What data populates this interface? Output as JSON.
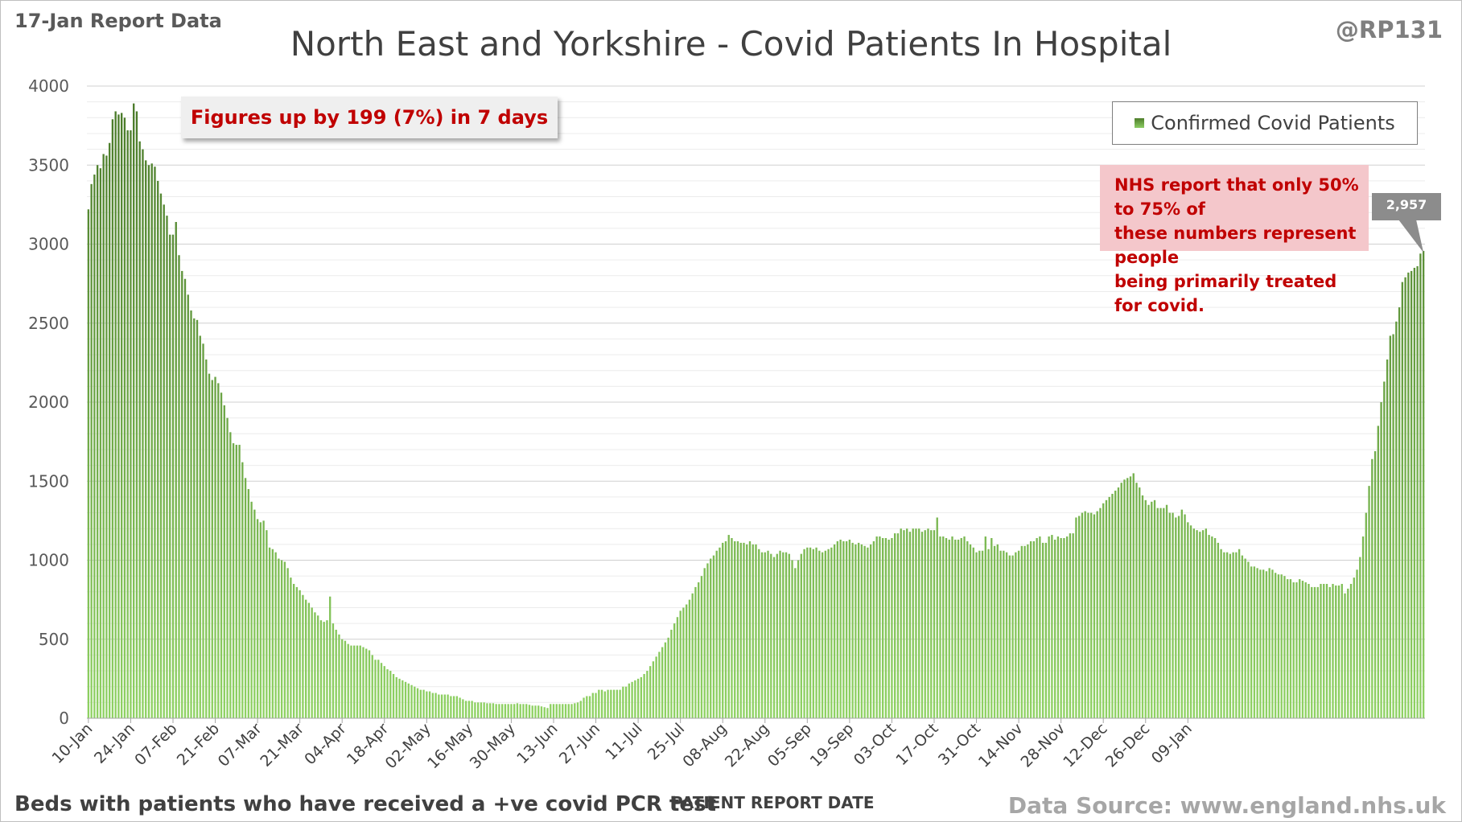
{
  "header": {
    "report_label": "17-Jan Report Data",
    "handle": "@RP131"
  },
  "footer": {
    "note": "Beds with patients who have received a +ve covid PCR test",
    "source": "Data Source: www.england.nhs.uk"
  },
  "callouts": {
    "change": "Figures up by 199 (7%) in 7 days",
    "nhs_line1": "NHS report that only 50% to 75% of",
    "nhs_line2": "these numbers represent people",
    "nhs_line3": "being primarily treated for covid.",
    "last_value": "2,957"
  },
  "colors": {
    "bar_top": "#3e6b1f",
    "bar_bottom": "#8fd263",
    "callout_text": "#c00000",
    "callout_bg": "#f4c7cb"
  },
  "chart_data": {
    "type": "bar",
    "title": "North East and Yorkshire - Covid Patients In Hospital",
    "xlabel": "PATIENT REPORT DATE",
    "ylabel": "",
    "ylim": [
      0,
      4000
    ],
    "yticks": [
      0,
      500,
      1000,
      1500,
      2000,
      2500,
      3000,
      3500,
      4000
    ],
    "grid": true,
    "legend": "top-right",
    "x_start": "10-Jan",
    "x_end": "17-Jan",
    "xtick_labels": [
      "10-Jan",
      "24-Jan",
      "07-Feb",
      "21-Feb",
      "07-Mar",
      "21-Mar",
      "04-Apr",
      "18-Apr",
      "02-May",
      "16-May",
      "30-May",
      "13-Jun",
      "27-Jun",
      "11-Jul",
      "25-Jul",
      "08-Aug",
      "22-Aug",
      "05-Sep",
      "19-Sep",
      "03-Oct",
      "17-Oct",
      "31-Oct",
      "14-Nov",
      "28-Nov",
      "12-Dec",
      "26-Dec",
      "09-Jan"
    ],
    "series": [
      {
        "name": "Confirmed Covid Patients",
        "values": [
          3220,
          3380,
          3440,
          3500,
          3480,
          3570,
          3560,
          3640,
          3790,
          3840,
          3820,
          3830,
          3800,
          3720,
          3720,
          3890,
          3840,
          3650,
          3600,
          3530,
          3500,
          3510,
          3490,
          3400,
          3320,
          3250,
          3180,
          3060,
          3060,
          3140,
          2930,
          2830,
          2780,
          2680,
          2580,
          2530,
          2520,
          2420,
          2370,
          2270,
          2180,
          2140,
          2160,
          2120,
          2060,
          1980,
          1900,
          1810,
          1740,
          1730,
          1730,
          1620,
          1520,
          1450,
          1370,
          1320,
          1260,
          1240,
          1250,
          1190,
          1080,
          1070,
          1050,
          1010,
          1000,
          990,
          950,
          890,
          850,
          830,
          810,
          780,
          750,
          730,
          700,
          670,
          650,
          620,
          610,
          620,
          770,
          600,
          560,
          530,
          500,
          490,
          470,
          460,
          460,
          460,
          460,
          450,
          440,
          430,
          400,
          370,
          370,
          350,
          330,
          310,
          300,
          280,
          260,
          250,
          240,
          230,
          220,
          210,
          200,
          190,
          180,
          180,
          170,
          170,
          160,
          160,
          150,
          150,
          150,
          150,
          140,
          140,
          140,
          130,
          120,
          110,
          110,
          110,
          100,
          100,
          100,
          100,
          95,
          95,
          95,
          90,
          90,
          90,
          90,
          90,
          90,
          90,
          95,
          90,
          90,
          90,
          85,
          80,
          80,
          80,
          75,
          70,
          65,
          90,
          90,
          90,
          90,
          90,
          90,
          90,
          90,
          95,
          100,
          110,
          130,
          140,
          140,
          160,
          160,
          180,
          180,
          170,
          180,
          180,
          180,
          180,
          180,
          200,
          200,
          220,
          230,
          240,
          250,
          260,
          280,
          300,
          330,
          360,
          390,
          420,
          450,
          480,
          510,
          560,
          600,
          640,
          680,
          700,
          720,
          750,
          790,
          830,
          860,
          900,
          950,
          980,
          1010,
          1030,
          1060,
          1080,
          1110,
          1120,
          1160,
          1140,
          1120,
          1120,
          1110,
          1110,
          1100,
          1120,
          1100,
          1100,
          1070,
          1050,
          1050,
          1060,
          1040,
          1020,
          1040,
          1060,
          1050,
          1050,
          1040,
          1000,
          950,
          1000,
          1040,
          1070,
          1080,
          1080,
          1070,
          1080,
          1060,
          1050,
          1060,
          1070,
          1080,
          1100,
          1120,
          1130,
          1120,
          1120,
          1130,
          1110,
          1100,
          1110,
          1100,
          1090,
          1080,
          1100,
          1120,
          1150,
          1150,
          1140,
          1140,
          1130,
          1140,
          1170,
          1170,
          1200,
          1190,
          1200,
          1180,
          1200,
          1200,
          1200,
          1180,
          1190,
          1200,
          1190,
          1190,
          1270,
          1150,
          1150,
          1140,
          1130,
          1150,
          1130,
          1130,
          1140,
          1150,
          1120,
          1100,
          1080,
          1050,
          1060,
          1060,
          1150,
          1070,
          1140,
          1090,
          1100,
          1060,
          1060,
          1050,
          1030,
          1030,
          1050,
          1060,
          1090,
          1090,
          1100,
          1120,
          1120,
          1140,
          1150,
          1110,
          1110,
          1150,
          1160,
          1130,
          1150,
          1140,
          1140,
          1150,
          1170,
          1170,
          1270,
          1280,
          1300,
          1310,
          1300,
          1300,
          1290,
          1310,
          1330,
          1360,
          1380,
          1400,
          1420,
          1440,
          1460,
          1490,
          1510,
          1520,
          1530,
          1550,
          1490,
          1460,
          1410,
          1380,
          1350,
          1370,
          1380,
          1330,
          1330,
          1330,
          1350,
          1300,
          1300,
          1270,
          1280,
          1320,
          1290,
          1240,
          1220,
          1200,
          1190,
          1180,
          1190,
          1200,
          1160,
          1150,
          1140,
          1110,
          1070,
          1050,
          1050,
          1040,
          1050,
          1050,
          1070,
          1030,
          1010,
          990,
          960,
          960,
          950,
          940,
          940,
          930,
          950,
          940,
          920,
          910,
          910,
          900,
          880,
          880,
          860,
          860,
          880,
          870,
          860,
          850,
          830,
          830,
          830,
          850,
          850,
          850,
          830,
          850,
          840,
          840,
          850,
          790,
          820,
          850,
          890,
          940,
          1020,
          1150,
          1300,
          1470,
          1640,
          1690,
          1850,
          2000,
          2130,
          2270,
          2420,
          2430,
          2510,
          2600,
          2760,
          2790,
          2820,
          2830,
          2850,
          2860,
          2940,
          2957
        ]
      }
    ]
  }
}
